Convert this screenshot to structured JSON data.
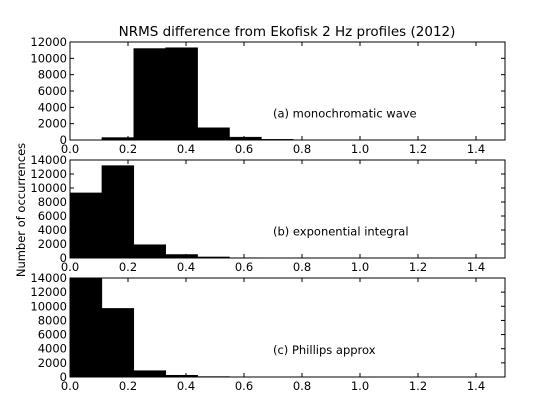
{
  "chart_data": {
    "type": "bar",
    "title": "NRMS difference from Ekofisk 2 Hz profiles (2012)",
    "ylabel": "Number of occurrences",
    "xlabel": "",
    "xlim": [
      0.0,
      1.5
    ],
    "xticks": [
      "0.0",
      "0.2",
      "0.4",
      "0.6",
      "0.8",
      "1.0",
      "1.2",
      "1.4"
    ],
    "bar_color": "#000000",
    "panels": [
      {
        "label": "(a) monochromatic wave",
        "ylim": [
          0,
          12000
        ],
        "yticks": [
          "0",
          "2000",
          "4000",
          "6000",
          "8000",
          "10000",
          "12000"
        ],
        "bins": [
          {
            "x0": 0.11,
            "x1": 0.22,
            "count": 300
          },
          {
            "x0": 0.22,
            "x1": 0.33,
            "count": 11200
          },
          {
            "x0": 0.33,
            "x1": 0.44,
            "count": 11300
          },
          {
            "x0": 0.44,
            "x1": 0.55,
            "count": 1500
          },
          {
            "x0": 0.55,
            "x1": 0.66,
            "count": 350
          },
          {
            "x0": 0.66,
            "x1": 0.77,
            "count": 80
          },
          {
            "x0": 0.77,
            "x1": 0.88,
            "count": 20
          }
        ]
      },
      {
        "label": "(b) exponential integral",
        "ylim": [
          0,
          14000
        ],
        "yticks": [
          "0",
          "2000",
          "4000",
          "6000",
          "8000",
          "10000",
          "12000",
          "14000"
        ],
        "bins": [
          {
            "x0": 0.0,
            "x1": 0.11,
            "count": 9300
          },
          {
            "x0": 0.11,
            "x1": 0.22,
            "count": 13200
          },
          {
            "x0": 0.22,
            "x1": 0.33,
            "count": 1900
          },
          {
            "x0": 0.33,
            "x1": 0.44,
            "count": 500
          },
          {
            "x0": 0.44,
            "x1": 0.55,
            "count": 150
          },
          {
            "x0": 0.55,
            "x1": 0.66,
            "count": 40
          }
        ]
      },
      {
        "label": "(c) Phillips approx",
        "ylim": [
          0,
          14000
        ],
        "yticks": [
          "0",
          "2000",
          "4000",
          "6000",
          "8000",
          "10000",
          "12000",
          "14000"
        ],
        "bins": [
          {
            "x0": 0.0,
            "x1": 0.11,
            "count": 14200
          },
          {
            "x0": 0.11,
            "x1": 0.22,
            "count": 9700
          },
          {
            "x0": 0.22,
            "x1": 0.33,
            "count": 900
          },
          {
            "x0": 0.33,
            "x1": 0.44,
            "count": 250
          },
          {
            "x0": 0.44,
            "x1": 0.55,
            "count": 60
          }
        ]
      }
    ]
  }
}
